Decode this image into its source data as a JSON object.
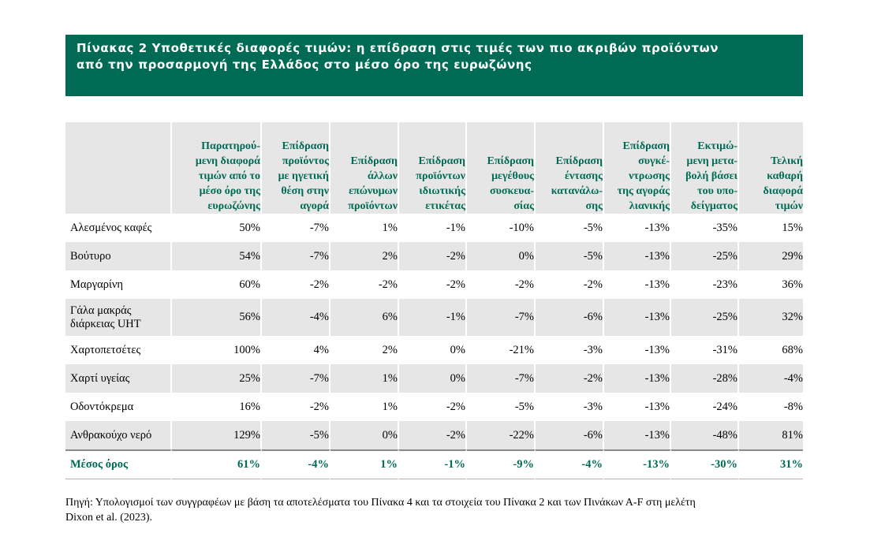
{
  "title": {
    "line1": "Πίνακας 2 Υποθετικές διαφορές τιμών: η επίδραση στις τιμές των πιο ακριβών προϊόντων",
    "line2": "από την προσαρμογή της Ελλάδος στο μέσο όρο της ευρωζώνης"
  },
  "header": [
    [
      "Παρατηρού-",
      "μενη διαφορά",
      "τιμών από το",
      "μέσο όρο της",
      "ευρωζώνης"
    ],
    [
      "Επίδραση",
      "προϊόντος",
      "με ηγετική",
      "θέση στην",
      "αγορά"
    ],
    [
      "Επίδραση",
      "άλλων",
      "επώνυμων",
      "προϊόντων"
    ],
    [
      "Επίδραση",
      "προϊόντων",
      "ιδιωτικής",
      "ετικέτας"
    ],
    [
      "Επίδραση",
      "μεγέθους",
      "συσκευα-",
      "σίας"
    ],
    [
      "Επίδραση",
      "έντασης",
      "κατανάλω-",
      "σης"
    ],
    [
      "Επίδραση",
      "συγκέ-",
      "ντρωσης",
      "της αγοράς",
      "λιανικής"
    ],
    [
      "Εκτιμώ-",
      "μενη μετα-",
      "βολή βάσει",
      "του υπο-",
      "δείγματος"
    ],
    [
      "Τελική",
      "καθαρή",
      "διαφορά",
      "τιμών"
    ]
  ],
  "rows": [
    {
      "label": [
        "Αλεσμένος καφές"
      ],
      "values": [
        "50%",
        "-7%",
        "1%",
        "-1%",
        "-10%",
        "-5%",
        "-13%",
        "-35%",
        "15%"
      ]
    },
    {
      "label": [
        "Βούτυρο"
      ],
      "values": [
        "54%",
        "-7%",
        "2%",
        "-2%",
        "0%",
        "-5%",
        "-13%",
        "-25%",
        "29%"
      ]
    },
    {
      "label": [
        "Μαργαρίνη"
      ],
      "values": [
        "60%",
        "-2%",
        "-2%",
        "-2%",
        "-2%",
        "-2%",
        "-13%",
        "-23%",
        "36%"
      ]
    },
    {
      "label": [
        "Γάλα μακράς",
        "διάρκειας UHT"
      ],
      "values": [
        "56%",
        "-4%",
        "6%",
        "-1%",
        "-7%",
        "-6%",
        "-13%",
        "-25%",
        "32%"
      ]
    },
    {
      "label": [
        "Χαρτοπετσέτες"
      ],
      "values": [
        "100%",
        "4%",
        "2%",
        "0%",
        "-21%",
        "-3%",
        "-13%",
        "-31%",
        "68%"
      ]
    },
    {
      "label": [
        "Χαρτί υγείας"
      ],
      "values": [
        "25%",
        "-7%",
        "1%",
        "0%",
        "-7%",
        "-2%",
        "-13%",
        "-28%",
        "-4%"
      ]
    },
    {
      "label": [
        "Οδοντόκρεμα"
      ],
      "values": [
        "16%",
        "-2%",
        "1%",
        "-2%",
        "-5%",
        "-3%",
        "-13%",
        "-24%",
        "-8%"
      ]
    },
    {
      "label": [
        "Ανθρακούχο νερό"
      ],
      "values": [
        "129%",
        "-5%",
        "0%",
        "-2%",
        "-22%",
        "-6%",
        "-13%",
        "-48%",
        "81%"
      ]
    }
  ],
  "average": {
    "label": "Μέσος όρος",
    "values": [
      "61%",
      "-4%",
      "1%",
      "-1%",
      "-9%",
      "-4%",
      "-13%",
      "-30%",
      "31%"
    ]
  },
  "source": {
    "line1": "Πηγή: Υπολογισμοί των συγγραφέων με βάση τα αποτελέσματα του Πίνακα 4 και τα στοιχεία του Πίνακα 2 και των Πινάκων Α-F στη μελέτη",
    "line2": "Dixon et al. (2023)."
  },
  "colors": {
    "accent": "#006B54",
    "shade": "#e6e6e6"
  }
}
